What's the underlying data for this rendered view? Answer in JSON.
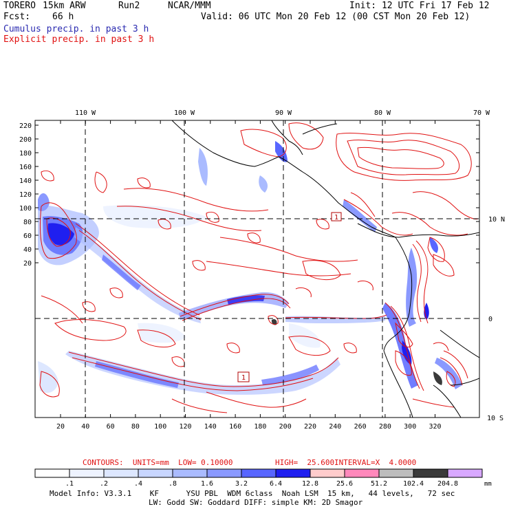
{
  "header": {
    "model": "TORERO",
    "resolution": "15km ARW",
    "run": "Run2",
    "org": "NCAR/MMM",
    "fcst_label": "Fcst:",
    "fcst_value": "66 h",
    "init": "Init: 12 UTC Fri 17 Feb 12",
    "valid": "Valid: 06 UTC Mon 20 Feb 12 (00 CST Mon 20 Feb 12)",
    "cumulus": "Cumulus precip. in past 3 h",
    "explicit": "Explicit precip. in past 3 h"
  },
  "axes": {
    "top_lon": [
      "110 W",
      "100 W",
      "90 W",
      "80 W",
      "70 W"
    ],
    "right_lat": [
      "10 N",
      "0",
      "10 S"
    ],
    "left_ticks": [
      "220",
      "200",
      "180",
      "160",
      "140",
      "120",
      "100",
      "80",
      "60",
      "40",
      "20"
    ],
    "bottom_ticks": [
      "20",
      "40",
      "60",
      "80",
      "100",
      "120",
      "140",
      "160",
      "180",
      "200",
      "220",
      "240",
      "260",
      "280",
      "300",
      "320"
    ]
  },
  "contour_info": {
    "units": "CONTOURS:  UNITS=mm  LOW= 0.10000",
    "high": "HIGH=  25.600",
    "interval": "INTERVAL=X  4.0000"
  },
  "colorbar": {
    "labels": [
      ".1",
      ".2",
      ".4",
      ".8",
      "1.6",
      "3.2",
      "6.4",
      "12.8",
      "25.6",
      "51.2",
      "102.4",
      "204.8"
    ],
    "unit": "mm",
    "colors": [
      "#ffffff",
      "#eef3ff",
      "#dde7ff",
      "#c8d6ff",
      "#aabbff",
      "#8a99ff",
      "#5866ff",
      "#1f1ff0",
      "#ffcccc",
      "#ff88bb",
      "#bdbdbd",
      "#3a3a3a",
      "#d8a8ff"
    ]
  },
  "footer": {
    "line1": "Model Info: V3.3.1    KF      YSU PBL  WDM 6class  Noah LSM  15 km,   44 levels,   72 sec",
    "line2": "LW: Godd SW: Goddard DIFF: simple KM: 2D Smagor"
  },
  "markers": [
    "1",
    "1"
  ],
  "colors": {
    "precip_contour": "#e01010",
    "coast": "#000000",
    "grid": "#000000"
  }
}
